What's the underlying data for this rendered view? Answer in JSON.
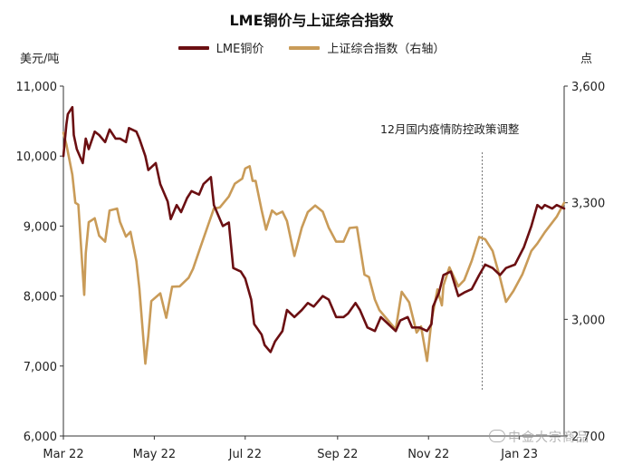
{
  "chart_data": {
    "type": "line",
    "title": "LME铜价与上证综合指数",
    "y_left_unit": "美元/吨",
    "y_right_unit": "点",
    "y_left_lim": [
      6000,
      11000
    ],
    "y_right_lim": [
      2700,
      3600
    ],
    "y_left_ticks": [
      "6,000",
      "7,000",
      "8,000",
      "9,000",
      "10,000",
      "11,000"
    ],
    "y_right_ticks": [
      "2,700",
      "3,000",
      "3,300",
      "3,600"
    ],
    "x_ticks": [
      "Mar 22",
      "May 22",
      "Jul 22",
      "Sep 22",
      "Nov 22",
      "Jan 23"
    ],
    "x_range": [
      "2022-03-01",
      "2023-01-31"
    ],
    "annotation": {
      "text": "12月国内疫情防控政策调整",
      "date": "2022-12-07"
    },
    "series": [
      {
        "name": "LME铜价",
        "color": "#6b0f12",
        "axis": "left",
        "x": [
          "2022-03-01",
          "2022-03-03",
          "2022-03-04",
          "2022-03-07",
          "2022-03-08",
          "2022-03-10",
          "2022-03-14",
          "2022-03-16",
          "2022-03-18",
          "2022-03-22",
          "2022-03-25",
          "2022-03-29",
          "2022-04-01",
          "2022-04-05",
          "2022-04-08",
          "2022-04-12",
          "2022-04-14",
          "2022-04-19",
          "2022-04-21",
          "2022-04-25",
          "2022-04-27",
          "2022-05-02",
          "2022-05-05",
          "2022-05-10",
          "2022-05-12",
          "2022-05-16",
          "2022-05-19",
          "2022-05-23",
          "2022-05-26",
          "2022-05-31",
          "2022-06-03",
          "2022-06-08",
          "2022-06-10",
          "2022-06-14",
          "2022-06-16",
          "2022-06-20",
          "2022-06-23",
          "2022-06-28",
          "2022-07-01",
          "2022-07-05",
          "2022-07-07",
          "2022-07-12",
          "2022-07-14",
          "2022-07-18",
          "2022-07-21",
          "2022-07-26",
          "2022-07-29",
          "2022-08-03",
          "2022-08-08",
          "2022-08-12",
          "2022-08-16",
          "2022-08-22",
          "2022-08-26",
          "2022-08-31",
          "2022-09-05",
          "2022-09-08",
          "2022-09-13",
          "2022-09-16",
          "2022-09-21",
          "2022-09-26",
          "2022-09-28",
          "2022-09-30",
          "2022-10-05",
          "2022-10-10",
          "2022-10-13",
          "2022-10-18",
          "2022-10-21",
          "2022-10-26",
          "2022-10-31",
          "2022-11-03",
          "2022-11-04",
          "2022-11-08",
          "2022-11-11",
          "2022-11-16",
          "2022-11-21",
          "2022-11-25",
          "2022-11-30",
          "2022-12-05",
          "2022-12-09",
          "2022-12-14",
          "2022-12-19",
          "2022-12-23",
          "2022-12-29",
          "2023-01-04",
          "2023-01-09",
          "2023-01-13",
          "2023-01-16",
          "2023-01-18",
          "2023-01-23",
          "2023-01-26",
          "2023-01-31"
        ],
        "values": [
          10000,
          10450,
          10600,
          10700,
          10300,
          10100,
          9900,
          10250,
          10100,
          10350,
          10300,
          10200,
          10380,
          10250,
          10250,
          10200,
          10400,
          10350,
          10250,
          10000,
          9800,
          9900,
          9600,
          9350,
          9100,
          9300,
          9200,
          9400,
          9500,
          9450,
          9600,
          9700,
          9300,
          9100,
          9000,
          9050,
          8400,
          8350,
          8250,
          7950,
          7600,
          7450,
          7300,
          7200,
          7350,
          7500,
          7800,
          7700,
          7800,
          7900,
          7850,
          8000,
          7950,
          7700,
          7700,
          7750,
          7900,
          7800,
          7550,
          7500,
          7600,
          7700,
          7600,
          7500,
          7650,
          7700,
          7550,
          7550,
          7500,
          7600,
          7850,
          8050,
          8300,
          8350,
          8000,
          8050,
          8100,
          8300,
          8450,
          8400,
          8300,
          8400,
          8450,
          8700,
          9000,
          9300,
          9250,
          9300,
          9250,
          9300,
          9250
        ]
      },
      {
        "name": "上证综合指数（右轴）",
        "color": "#c99b58",
        "axis": "right",
        "x": [
          "2022-03-01",
          "2022-03-03",
          "2022-03-07",
          "2022-03-09",
          "2022-03-11",
          "2022-03-15",
          "2022-03-16",
          "2022-03-18",
          "2022-03-22",
          "2022-03-25",
          "2022-03-29",
          "2022-04-01",
          "2022-04-06",
          "2022-04-08",
          "2022-04-12",
          "2022-04-15",
          "2022-04-19",
          "2022-04-21",
          "2022-04-25",
          "2022-04-27",
          "2022-04-29",
          "2022-05-05",
          "2022-05-09",
          "2022-05-13",
          "2022-05-18",
          "2022-05-24",
          "2022-05-27",
          "2022-06-01",
          "2022-06-06",
          "2022-06-10",
          "2022-06-14",
          "2022-06-20",
          "2022-06-24",
          "2022-06-29",
          "2022-07-01",
          "2022-07-04",
          "2022-07-06",
          "2022-07-08",
          "2022-07-12",
          "2022-07-15",
          "2022-07-19",
          "2022-07-22",
          "2022-07-26",
          "2022-07-29",
          "2022-08-03",
          "2022-08-08",
          "2022-08-12",
          "2022-08-17",
          "2022-08-22",
          "2022-08-26",
          "2022-08-31",
          "2022-09-05",
          "2022-09-09",
          "2022-09-14",
          "2022-09-19",
          "2022-09-22",
          "2022-09-26",
          "2022-09-29",
          "2022-10-10",
          "2022-10-14",
          "2022-10-19",
          "2022-10-24",
          "2022-10-27",
          "2022-10-31",
          "2022-11-03",
          "2022-11-07",
          "2022-11-10",
          "2022-11-11",
          "2022-11-15",
          "2022-11-21",
          "2022-11-25",
          "2022-11-30",
          "2022-12-05",
          "2022-12-09",
          "2022-12-14",
          "2022-12-19",
          "2022-12-23",
          "2022-12-28",
          "2023-01-03",
          "2023-01-09",
          "2023-01-13",
          "2023-01-18",
          "2023-01-26",
          "2023-01-31"
        ],
        "values": [
          3480,
          3450,
          3372,
          3300,
          3295,
          3063,
          3170,
          3250,
          3260,
          3215,
          3200,
          3280,
          3285,
          3251,
          3213,
          3225,
          3150,
          3080,
          2886,
          2958,
          3047,
          3067,
          3004,
          3084,
          3085,
          3107,
          3130,
          3186,
          3241,
          3285,
          3288,
          3316,
          3349,
          3362,
          3388,
          3394,
          3356,
          3356,
          3281,
          3231,
          3280,
          3270,
          3277,
          3253,
          3163,
          3236,
          3276,
          3293,
          3277,
          3236,
          3200,
          3200,
          3235,
          3237,
          3115,
          3109,
          3051,
          3024,
          2974,
          3071,
          3044,
          2966,
          2982,
          2893,
          2997,
          3077,
          3036,
          3087,
          3134,
          3085,
          3101,
          3151,
          3212,
          3206,
          3176,
          3107,
          3045,
          3073,
          3116,
          3176,
          3195,
          3224,
          3264,
          3300
        ]
      }
    ]
  }
}
